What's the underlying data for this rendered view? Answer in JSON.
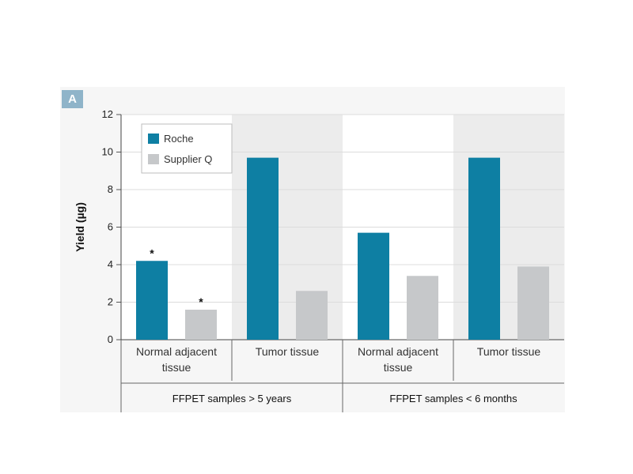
{
  "panel_label": "A",
  "chart_data": {
    "type": "bar",
    "title": "",
    "xlabel": "",
    "ylabel": "Yield (µg)",
    "ylim": [
      0,
      12
    ],
    "yticks": [
      0,
      2,
      4,
      6,
      8,
      10,
      12
    ],
    "grid": true,
    "legend_position": "top-left",
    "categories": [
      "Normal adjacent tissue",
      "Tumor tissue",
      "Normal adjacent tissue",
      "Tumor tissue"
    ],
    "groups": [
      {
        "label": "FFPET samples > 5 years",
        "categories": [
          0,
          1
        ]
      },
      {
        "label": "FFPET samples < 6 months",
        "categories": [
          2,
          3
        ]
      }
    ],
    "series": [
      {
        "name": "Roche",
        "color": "#0e7fa3",
        "values": [
          4.2,
          9.7,
          5.7,
          9.7
        ],
        "markers": [
          "*",
          "",
          "",
          ""
        ]
      },
      {
        "name": "Supplier Q",
        "color": "#c6c8ca",
        "values": [
          1.6,
          2.6,
          3.4,
          3.9
        ],
        "markers": [
          "*",
          "",
          "",
          ""
        ]
      }
    ]
  }
}
